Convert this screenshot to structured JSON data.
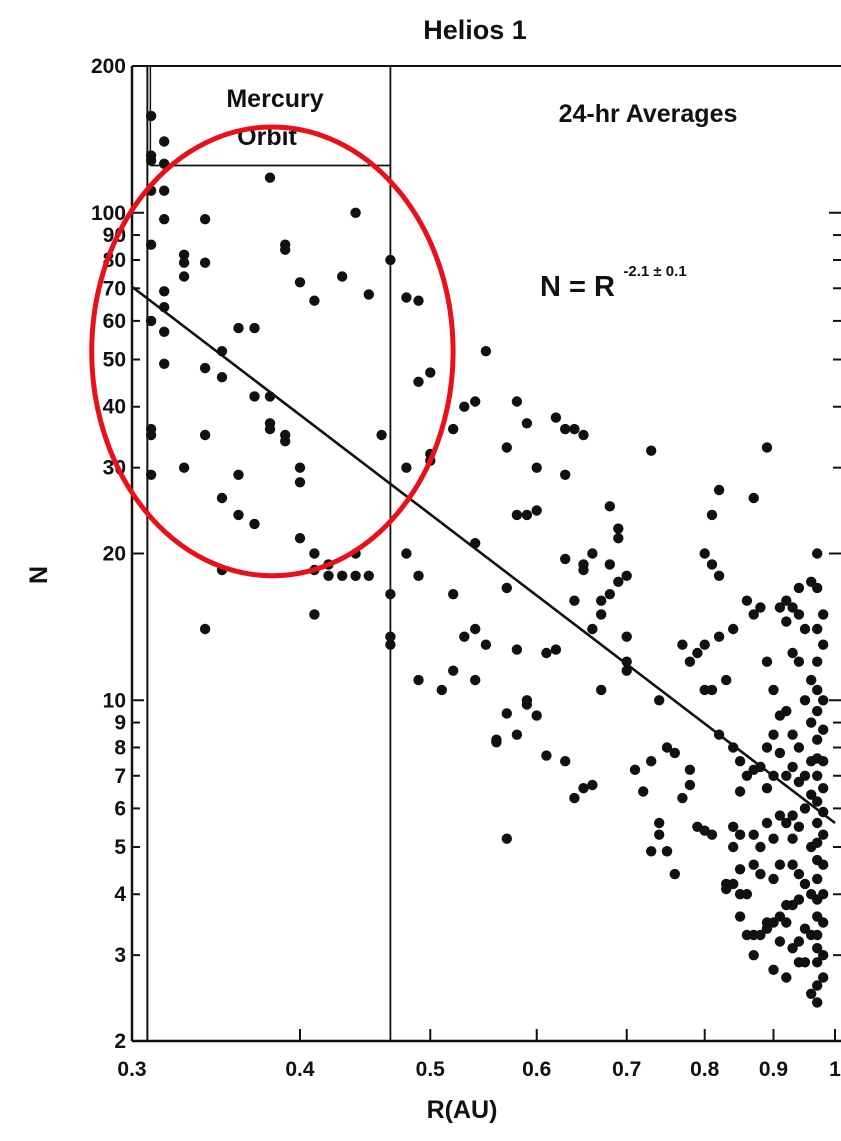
{
  "chart_data": {
    "type": "scatter",
    "title": "Helios 1",
    "xlabel": "R(AU)",
    "ylabel": "N",
    "x_scale": "log",
    "y_scale": "log",
    "xlim": [
      0.3,
      1.0
    ],
    "ylim": [
      2,
      200
    ],
    "x_ticks": [
      {
        "value": 0.3,
        "label": "0.3"
      },
      {
        "value": 0.4,
        "label": "0.4"
      },
      {
        "value": 0.5,
        "label": "0.5"
      },
      {
        "value": 0.6,
        "label": "0.6"
      },
      {
        "value": 0.7,
        "label": "0.7"
      },
      {
        "value": 0.8,
        "label": "0.8"
      },
      {
        "value": 0.9,
        "label": "0.9"
      },
      {
        "value": 1.0,
        "label": "1"
      }
    ],
    "y_ticks": [
      {
        "value": 2,
        "label": "2"
      },
      {
        "value": 3,
        "label": "3"
      },
      {
        "value": 4,
        "label": "4"
      },
      {
        "value": 5,
        "label": "5"
      },
      {
        "value": 6,
        "label": "6"
      },
      {
        "value": 7,
        "label": "7"
      },
      {
        "value": 8,
        "label": "8"
      },
      {
        "value": 9,
        "label": "9"
      },
      {
        "value": 10,
        "label": "10"
      },
      {
        "value": 20,
        "label": "20"
      },
      {
        "value": 30,
        "label": "30"
      },
      {
        "value": 40,
        "label": "40"
      },
      {
        "value": 50,
        "label": "50"
      },
      {
        "value": 60,
        "label": "60"
      },
      {
        "value": 70,
        "label": "70"
      },
      {
        "value": 80,
        "label": "80"
      },
      {
        "value": 90,
        "label": "90"
      },
      {
        "value": 100,
        "label": "100"
      },
      {
        "value": 200,
        "label": "200"
      }
    ],
    "annotations": {
      "region_label_line1": "Mercury",
      "region_label_line2": "Orbit",
      "averages_label": "24-hr Averages",
      "equation_main": "N = R",
      "equation_exponent": "-2.1 ± 0.1"
    },
    "mercury_orbit": {
      "r_min": 0.308,
      "r_max": 0.467,
      "band_top_N": 125
    },
    "fit_line": {
      "exponent": -2.1,
      "x": [
        0.3,
        1.0
      ],
      "y": [
        70.5,
        5.6
      ]
    },
    "highlight_circle": {
      "color": "#e8101a",
      "center": [
        0.38,
        48
      ],
      "x_span": [
        0.28,
        0.52
      ],
      "y_span": [
        18,
        150
      ]
    },
    "grid": false,
    "legend": "none",
    "points": [
      [
        0.31,
        158
      ],
      [
        0.31,
        131
      ],
      [
        0.31,
        128
      ],
      [
        0.31,
        111
      ],
      [
        0.31,
        86
      ],
      [
        0.31,
        60
      ],
      [
        0.31,
        36
      ],
      [
        0.31,
        35
      ],
      [
        0.31,
        29
      ],
      [
        0.317,
        140
      ],
      [
        0.317,
        126
      ],
      [
        0.317,
        111
      ],
      [
        0.317,
        97
      ],
      [
        0.317,
        69
      ],
      [
        0.317,
        64
      ],
      [
        0.317,
        57
      ],
      [
        0.317,
        49
      ],
      [
        0.328,
        82
      ],
      [
        0.328,
        79
      ],
      [
        0.328,
        74
      ],
      [
        0.328,
        30
      ],
      [
        0.34,
        97
      ],
      [
        0.34,
        79
      ],
      [
        0.34,
        48
      ],
      [
        0.34,
        35
      ],
      [
        0.34,
        14
      ],
      [
        0.35,
        52
      ],
      [
        0.35,
        46
      ],
      [
        0.35,
        26
      ],
      [
        0.35,
        18.5
      ],
      [
        0.36,
        58
      ],
      [
        0.36,
        29
      ],
      [
        0.36,
        24
      ],
      [
        0.37,
        58
      ],
      [
        0.37,
        42
      ],
      [
        0.37,
        23
      ],
      [
        0.38,
        118
      ],
      [
        0.38,
        42
      ],
      [
        0.38,
        37
      ],
      [
        0.38,
        36
      ],
      [
        0.39,
        86
      ],
      [
        0.39,
        84
      ],
      [
        0.39,
        35
      ],
      [
        0.39,
        34
      ],
      [
        0.4,
        72
      ],
      [
        0.4,
        30
      ],
      [
        0.4,
        28
      ],
      [
        0.4,
        21.5
      ],
      [
        0.41,
        66
      ],
      [
        0.41,
        20
      ],
      [
        0.41,
        18.5
      ],
      [
        0.41,
        15
      ],
      [
        0.42,
        19
      ],
      [
        0.42,
        18
      ],
      [
        0.43,
        74
      ],
      [
        0.43,
        18
      ],
      [
        0.44,
        100
      ],
      [
        0.44,
        20
      ],
      [
        0.44,
        18
      ],
      [
        0.45,
        68
      ],
      [
        0.45,
        18
      ],
      [
        0.46,
        35
      ],
      [
        0.467,
        80
      ],
      [
        0.467,
        16.5
      ],
      [
        0.467,
        13.5
      ],
      [
        0.467,
        13
      ],
      [
        0.48,
        67
      ],
      [
        0.48,
        30
      ],
      [
        0.48,
        20
      ],
      [
        0.49,
        66
      ],
      [
        0.49,
        45
      ],
      [
        0.49,
        18
      ],
      [
        0.49,
        11
      ],
      [
        0.5,
        47
      ],
      [
        0.5,
        32
      ],
      [
        0.5,
        31
      ],
      [
        0.51,
        10.5
      ],
      [
        0.52,
        36
      ],
      [
        0.52,
        16.5
      ],
      [
        0.52,
        11.5
      ],
      [
        0.53,
        40
      ],
      [
        0.53,
        13.5
      ],
      [
        0.54,
        41
      ],
      [
        0.54,
        21
      ],
      [
        0.54,
        14
      ],
      [
        0.54,
        11
      ],
      [
        0.55,
        52
      ],
      [
        0.55,
        13
      ],
      [
        0.56,
        8.2
      ],
      [
        0.56,
        8.3
      ],
      [
        0.57,
        33
      ],
      [
        0.57,
        17
      ],
      [
        0.57,
        9.4
      ],
      [
        0.57,
        5.2
      ],
      [
        0.58,
        41
      ],
      [
        0.58,
        24
      ],
      [
        0.58,
        12.7
      ],
      [
        0.58,
        8.5
      ],
      [
        0.59,
        37
      ],
      [
        0.59,
        24
      ],
      [
        0.59,
        10
      ],
      [
        0.59,
        9.8
      ],
      [
        0.6,
        30
      ],
      [
        0.6,
        24.5
      ],
      [
        0.6,
        9.3
      ],
      [
        0.61,
        12.5
      ],
      [
        0.61,
        7.7
      ],
      [
        0.62,
        38
      ],
      [
        0.62,
        12.7
      ],
      [
        0.63,
        36
      ],
      [
        0.63,
        29
      ],
      [
        0.63,
        19.5
      ],
      [
        0.63,
        7.5
      ],
      [
        0.64,
        36
      ],
      [
        0.64,
        16
      ],
      [
        0.64,
        6.3
      ],
      [
        0.65,
        35
      ],
      [
        0.65,
        19
      ],
      [
        0.65,
        18.5
      ],
      [
        0.65,
        6.6
      ],
      [
        0.66,
        20
      ],
      [
        0.66,
        14
      ],
      [
        0.66,
        6.7
      ],
      [
        0.67,
        16
      ],
      [
        0.67,
        15
      ],
      [
        0.67,
        10.5
      ],
      [
        0.68,
        25
      ],
      [
        0.68,
        19
      ],
      [
        0.68,
        16.5
      ],
      [
        0.69,
        22.5
      ],
      [
        0.69,
        21.5
      ],
      [
        0.69,
        17.5
      ],
      [
        0.7,
        18
      ],
      [
        0.7,
        13.5
      ],
      [
        0.7,
        12
      ],
      [
        0.7,
        11.5
      ],
      [
        0.71,
        7.2
      ],
      [
        0.72,
        6.5
      ],
      [
        0.73,
        32.5
      ],
      [
        0.73,
        7.5
      ],
      [
        0.73,
        4.9
      ],
      [
        0.74,
        10
      ],
      [
        0.74,
        5.6
      ],
      [
        0.74,
        5.3
      ],
      [
        0.75,
        8
      ],
      [
        0.75,
        4.9
      ],
      [
        0.75,
        4.9
      ],
      [
        0.76,
        7.8
      ],
      [
        0.76,
        4.4
      ],
      [
        0.77,
        13
      ],
      [
        0.77,
        6.3
      ],
      [
        0.78,
        12
      ],
      [
        0.78,
        7.2
      ],
      [
        0.78,
        6.7
      ],
      [
        0.79,
        12.5
      ],
      [
        0.79,
        5.5
      ],
      [
        0.8,
        20
      ],
      [
        0.8,
        13
      ],
      [
        0.8,
        10.5
      ],
      [
        0.8,
        5.4
      ],
      [
        0.81,
        24
      ],
      [
        0.81,
        19
      ],
      [
        0.81,
        10.5
      ],
      [
        0.81,
        5.3
      ],
      [
        0.82,
        27
      ],
      [
        0.82,
        18
      ],
      [
        0.82,
        13.5
      ],
      [
        0.82,
        8.5
      ],
      [
        0.83,
        11
      ],
      [
        0.83,
        4.2
      ],
      [
        0.83,
        4.1
      ],
      [
        0.84,
        14
      ],
      [
        0.84,
        8
      ],
      [
        0.84,
        5.5
      ],
      [
        0.84,
        5.0
      ],
      [
        0.84,
        4.2
      ],
      [
        0.85,
        7.5
      ],
      [
        0.85,
        6.5
      ],
      [
        0.85,
        5.3
      ],
      [
        0.85,
        4.5
      ],
      [
        0.85,
        4.0
      ],
      [
        0.85,
        3.6
      ],
      [
        0.86,
        16
      ],
      [
        0.86,
        7
      ],
      [
        0.86,
        4.0
      ],
      [
        0.86,
        3.3
      ],
      [
        0.87,
        26
      ],
      [
        0.87,
        15
      ],
      [
        0.87,
        7.2
      ],
      [
        0.87,
        5.3
      ],
      [
        0.87,
        4.6
      ],
      [
        0.87,
        3.3
      ],
      [
        0.87,
        3.0
      ],
      [
        0.88,
        15.5
      ],
      [
        0.88,
        7.3
      ],
      [
        0.88,
        5.0
      ],
      [
        0.88,
        4.4
      ],
      [
        0.88,
        3.3
      ],
      [
        0.89,
        33
      ],
      [
        0.89,
        12
      ],
      [
        0.89,
        8
      ],
      [
        0.89,
        6.6
      ],
      [
        0.89,
        5.6
      ],
      [
        0.89,
        3.5
      ],
      [
        0.89,
        3.4
      ],
      [
        0.9,
        10.5
      ],
      [
        0.9,
        8.5
      ],
      [
        0.9,
        7
      ],
      [
        0.9,
        5.2
      ],
      [
        0.9,
        4.3
      ],
      [
        0.9,
        3.5
      ],
      [
        0.9,
        2.8
      ],
      [
        0.91,
        15.5
      ],
      [
        0.91,
        9.3
      ],
      [
        0.91,
        7.8
      ],
      [
        0.91,
        5.8
      ],
      [
        0.91,
        4.6
      ],
      [
        0.91,
        3.6
      ],
      [
        0.91,
        3.2
      ],
      [
        0.92,
        16
      ],
      [
        0.92,
        14.5
      ],
      [
        0.92,
        9.5
      ],
      [
        0.92,
        7
      ],
      [
        0.92,
        5.6
      ],
      [
        0.92,
        3.8
      ],
      [
        0.92,
        3.5
      ],
      [
        0.92,
        2.7
      ],
      [
        0.93,
        15.5
      ],
      [
        0.93,
        12.5
      ],
      [
        0.93,
        8.5
      ],
      [
        0.93,
        7.3
      ],
      [
        0.93,
        5.8
      ],
      [
        0.93,
        5.2
      ],
      [
        0.93,
        4.6
      ],
      [
        0.93,
        3.8
      ],
      [
        0.93,
        3.1
      ],
      [
        0.94,
        17
      ],
      [
        0.94,
        15
      ],
      [
        0.94,
        12
      ],
      [
        0.94,
        8
      ],
      [
        0.94,
        6.8
      ],
      [
        0.94,
        5.5
      ],
      [
        0.94,
        4.4
      ],
      [
        0.94,
        3.9
      ],
      [
        0.94,
        3.2
      ],
      [
        0.94,
        2.9
      ],
      [
        0.95,
        14
      ],
      [
        0.95,
        10
      ],
      [
        0.95,
        7
      ],
      [
        0.95,
        6
      ],
      [
        0.95,
        4.2
      ],
      [
        0.95,
        3.4
      ],
      [
        0.95,
        2.9
      ],
      [
        0.96,
        17.5
      ],
      [
        0.96,
        11
      ],
      [
        0.96,
        9
      ],
      [
        0.96,
        7.5
      ],
      [
        0.96,
        6.4
      ],
      [
        0.96,
        5
      ],
      [
        0.96,
        4.0
      ],
      [
        0.96,
        3.3
      ],
      [
        0.96,
        2.5
      ],
      [
        0.97,
        20
      ],
      [
        0.97,
        17
      ],
      [
        0.97,
        14
      ],
      [
        0.97,
        12
      ],
      [
        0.97,
        10.5
      ],
      [
        0.97,
        9.5
      ],
      [
        0.97,
        8.3
      ],
      [
        0.97,
        7.6
      ],
      [
        0.97,
        7
      ],
      [
        0.97,
        6.2
      ],
      [
        0.97,
        5.6
      ],
      [
        0.97,
        5.1
      ],
      [
        0.97,
        4.7
      ],
      [
        0.97,
        4.3
      ],
      [
        0.97,
        3.9
      ],
      [
        0.97,
        3.6
      ],
      [
        0.97,
        3.3
      ],
      [
        0.97,
        3.1
      ],
      [
        0.97,
        2.9
      ],
      [
        0.97,
        2.6
      ],
      [
        0.97,
        2.4
      ],
      [
        0.98,
        15
      ],
      [
        0.98,
        13
      ],
      [
        0.98,
        10
      ],
      [
        0.98,
        8.7
      ],
      [
        0.98,
        7.5
      ],
      [
        0.98,
        6.6
      ],
      [
        0.98,
        5.9
      ],
      [
        0.98,
        5.3
      ],
      [
        0.98,
        4.6
      ],
      [
        0.98,
        4.0
      ],
      [
        0.98,
        3.5
      ],
      [
        0.98,
        3.0
      ],
      [
        0.98,
        2.7
      ]
    ]
  }
}
